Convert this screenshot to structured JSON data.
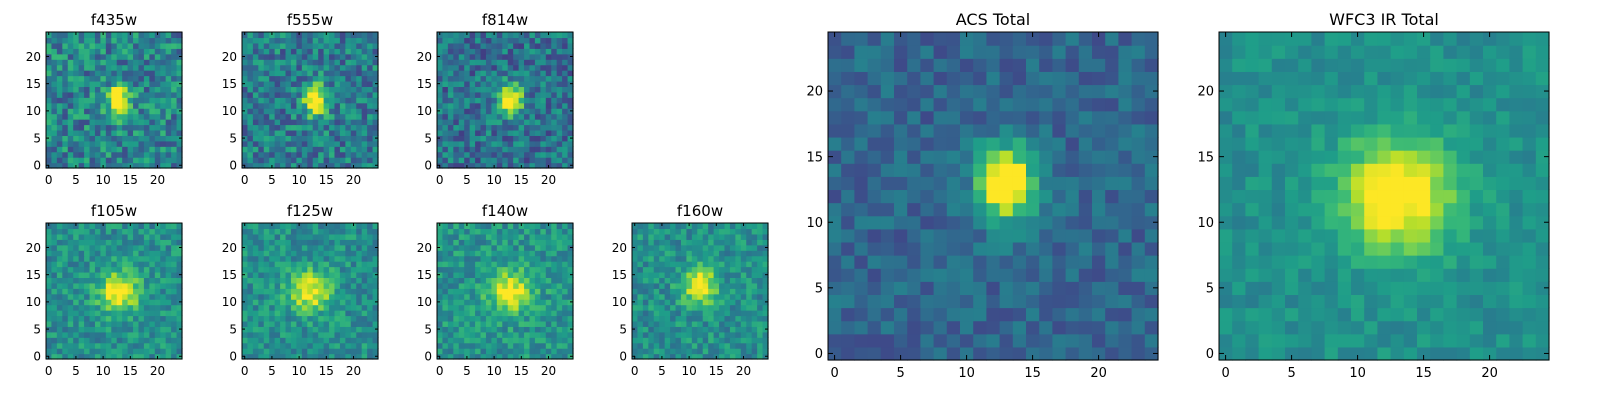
{
  "chart_data": [
    {
      "type": "heatmap",
      "title": "f435w",
      "size": 25,
      "xticks": [
        0,
        5,
        10,
        15,
        20
      ],
      "yticks": [
        0,
        5,
        10,
        15,
        20
      ],
      "peak": [
        13,
        12
      ],
      "sigma": [
        1.4,
        2.0
      ],
      "amplitude": 0.75,
      "noise": 0.45,
      "base": 0.45,
      "seed": 11
    },
    {
      "type": "heatmap",
      "title": "f555w",
      "size": 25,
      "xticks": [
        0,
        5,
        10,
        15,
        20
      ],
      "yticks": [
        0,
        5,
        10,
        15,
        20
      ],
      "peak": [
        13,
        12
      ],
      "sigma": [
        1.4,
        2.0
      ],
      "amplitude": 0.8,
      "noise": 0.42,
      "base": 0.42,
      "seed": 23
    },
    {
      "type": "heatmap",
      "title": "f814w",
      "size": 25,
      "xticks": [
        0,
        5,
        10,
        15,
        20
      ],
      "yticks": [
        0,
        5,
        10,
        15,
        20
      ],
      "peak": [
        13,
        12
      ],
      "sigma": [
        1.5,
        2.0
      ],
      "amplitude": 0.8,
      "noise": 0.4,
      "base": 0.38,
      "seed": 37
    },
    {
      "type": "heatmap",
      "title": "f105w",
      "size": 25,
      "xticks": [
        0,
        5,
        10,
        15,
        20
      ],
      "yticks": [
        0,
        5,
        10,
        15,
        20
      ],
      "peak": [
        13,
        12
      ],
      "sigma": [
        2.6,
        2.6
      ],
      "amplitude": 0.55,
      "noise": 0.3,
      "base": 0.5,
      "seed": 41
    },
    {
      "type": "heatmap",
      "title": "f125w",
      "size": 25,
      "xticks": [
        0,
        5,
        10,
        15,
        20
      ],
      "yticks": [
        0,
        5,
        10,
        15,
        20
      ],
      "peak": [
        12,
        12
      ],
      "sigma": [
        2.8,
        2.6
      ],
      "amplitude": 0.5,
      "noise": 0.3,
      "base": 0.5,
      "seed": 53
    },
    {
      "type": "heatmap",
      "title": "f140w",
      "size": 25,
      "xticks": [
        0,
        5,
        10,
        15,
        20
      ],
      "yticks": [
        0,
        5,
        10,
        15,
        20
      ],
      "peak": [
        13,
        12
      ],
      "sigma": [
        2.8,
        2.6
      ],
      "amplitude": 0.5,
      "noise": 0.3,
      "base": 0.52,
      "seed": 67
    },
    {
      "type": "heatmap",
      "title": "f160w",
      "size": 25,
      "xticks": [
        0,
        5,
        10,
        15,
        20
      ],
      "yticks": [
        0,
        5,
        10,
        15,
        20
      ],
      "peak": [
        12,
        13
      ],
      "sigma": [
        2.2,
        2.4
      ],
      "amplitude": 0.55,
      "noise": 0.3,
      "base": 0.5,
      "seed": 79
    },
    {
      "type": "heatmap",
      "title": "ACS Total",
      "size": 25,
      "xticks": [
        0,
        5,
        10,
        15,
        20
      ],
      "yticks": [
        0,
        5,
        10,
        15,
        20
      ],
      "peak": [
        13,
        13
      ],
      "sigma": [
        1.5,
        2.0
      ],
      "amplitude": 0.85,
      "noise": 0.22,
      "base": 0.33,
      "seed": 97
    },
    {
      "type": "heatmap",
      "title": "WFC3 IR Total",
      "size": 25,
      "xticks": [
        0,
        5,
        10,
        15,
        20
      ],
      "yticks": [
        0,
        5,
        10,
        15,
        20
      ],
      "peak": [
        13,
        12
      ],
      "sigma": [
        3.0,
        3.0
      ],
      "amplitude": 0.6,
      "noise": 0.16,
      "base": 0.5,
      "seed": 113
    }
  ]
}
